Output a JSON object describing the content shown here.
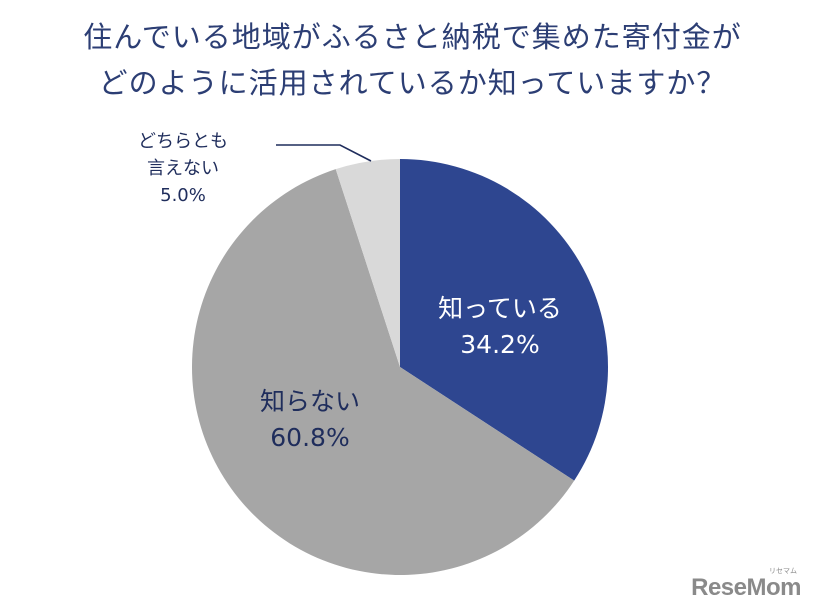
{
  "title": {
    "line1": "住んでいる地域がふるさと納税で集めた寄付金が",
    "line2": "どのように活用されているか知っていますか？"
  },
  "labels": {
    "known": {
      "name": "知っている",
      "value": "34.2%"
    },
    "unknown": {
      "name": "知らない",
      "value": "60.8%"
    },
    "neither": {
      "name_line1": "どちらとも",
      "name_line2": "言えない",
      "value": "5.0%"
    }
  },
  "logo": {
    "text": "ReseMom",
    "ruby": "リセマム"
  },
  "colors": {
    "known": "#2e4690",
    "unknown": "#a6a6a6",
    "neither": "#d9d9d9",
    "title": "#2c3e74",
    "leader_line": "#1f2d5c"
  },
  "chart_data": {
    "type": "pie",
    "title": "住んでいる地域がふるさと納税で集めた寄付金がどのように活用されているか知っていますか？",
    "categories": [
      "知っている",
      "知らない",
      "どちらとも言えない"
    ],
    "values": [
      34.2,
      60.8,
      5.0
    ],
    "unit": "%",
    "start_angle": "12 o'clock, clockwise",
    "colors": [
      "#2e4690",
      "#a6a6a6",
      "#d9d9d9"
    ],
    "legend": "none (direct labels)"
  }
}
